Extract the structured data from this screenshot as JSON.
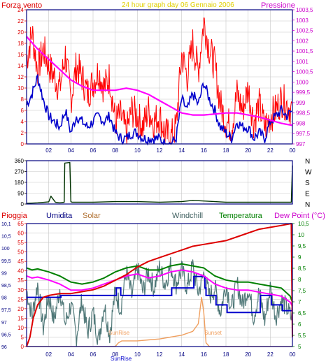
{
  "top": {
    "left_label": "Forza vento",
    "title": "24 hour graph day    06 Gennaio 2006",
    "right_label": "Pressione"
  },
  "bottom": {
    "labels": {
      "pioggia": "Pioggia",
      "umidita": "Umidita",
      "solar": "Solar",
      "windchill": "Windchill",
      "temperatura": "Temperatura",
      "dewpoint": "Dew Point (°C)",
      "sunset": "Sunset",
      "sunrise": "SunRise"
    }
  },
  "colors": {
    "frame": "#000080",
    "wind": "#ff0000",
    "gust_avg": "#0000cc",
    "pressure": "#ff00ff",
    "direction": "#003300",
    "rain": "#dd0000",
    "humidity": "#0000cc",
    "solar": "#f0a060",
    "windchill": "#507878",
    "temperature": "#008000",
    "dewpoint": "#ff00ff",
    "left_axis": "#dd0000",
    "right_axis": "#cc00cc",
    "temp_axis": "#008000"
  },
  "chart_data": [
    {
      "type": "line",
      "name": "wind_pressure",
      "x_ticks": [
        "02",
        "04",
        "06",
        "08",
        "10",
        "12",
        "14",
        "16",
        "18",
        "20",
        "22",
        "00"
      ],
      "x_range": [
        0,
        24
      ],
      "y_left_ticks": [
        "24",
        "22",
        "20",
        "18",
        "16",
        "14",
        "12",
        "10",
        "8",
        "6",
        "4",
        "2",
        "0"
      ],
      "y_left_range": [
        0,
        24
      ],
      "y_right_ticks": [
        "1003,5",
        "1003",
        "1002,5",
        "1002",
        "1001,5",
        "1001",
        "1000,5",
        "1000",
        "999,5",
        "999",
        "998,5",
        "998",
        "997,5",
        "997"
      ],
      "y_right_range": [
        997,
        1003.5
      ],
      "series": [
        {
          "key": "wind_gust",
          "x": [
            0,
            0.5,
            1,
            1.5,
            2,
            2.5,
            3,
            3.5,
            4,
            4.5,
            5,
            5.5,
            6,
            6.5,
            7,
            7.5,
            8,
            8.5,
            9,
            9.5,
            10,
            10.5,
            11,
            11.5,
            12,
            12.5,
            13,
            13.5,
            14,
            14.5,
            15,
            15.5,
            16,
            16.5,
            17,
            17.5,
            18,
            18.5,
            19,
            19.5,
            20,
            20.5,
            21,
            21.5,
            22,
            22.5,
            23,
            23.5,
            24
          ],
          "values": [
            15,
            20,
            13,
            17,
            14,
            12,
            10,
            16,
            8,
            14,
            12,
            9,
            11,
            13,
            10,
            12,
            4,
            5,
            2,
            6,
            5,
            3,
            6,
            4,
            5,
            2,
            1,
            3,
            16,
            12,
            18,
            13,
            22,
            17,
            14,
            7,
            4,
            3,
            9,
            6,
            10,
            4,
            7,
            3,
            5,
            6,
            8,
            7,
            6
          ]
        },
        {
          "key": "wind_avg",
          "x": [
            0,
            0.5,
            1,
            1.5,
            2,
            2.5,
            3,
            3.5,
            4,
            4.5,
            5,
            5.5,
            6,
            6.5,
            7,
            7.5,
            8,
            8.5,
            9,
            9.5,
            10,
            10.5,
            11,
            11.5,
            12,
            12.5,
            13,
            13.5,
            14,
            14.5,
            15,
            15.5,
            16,
            16.5,
            17,
            17.5,
            18,
            18.5,
            19,
            19.5,
            20,
            20.5,
            21,
            21.5,
            22,
            22.5,
            23,
            23.5,
            24
          ],
          "values": [
            7,
            9,
            12,
            8,
            5,
            4,
            3,
            6,
            2,
            5,
            4,
            3,
            4,
            5,
            4,
            5,
            2,
            1,
            1,
            2,
            2,
            1,
            1,
            1,
            1,
            0,
            0,
            1,
            8,
            6,
            9,
            7,
            11,
            8,
            6,
            3,
            2,
            1,
            4,
            3,
            3,
            1,
            2,
            1,
            4,
            5,
            6,
            5,
            6
          ]
        },
        {
          "key": "pressure",
          "x": [
            0,
            1,
            2,
            3,
            4,
            5,
            6,
            7,
            8,
            9,
            10,
            11,
            12,
            13,
            14,
            15,
            16,
            17,
            18,
            19,
            20,
            21,
            22,
            23,
            24
          ],
          "values": [
            1002.2,
            1001.6,
            1001.1,
            1000.6,
            1000.1,
            999.8,
            999.6,
            999.6,
            999.6,
            999.7,
            999.6,
            999.4,
            999.1,
            998.8,
            998.5,
            998.4,
            998.4,
            998.45,
            998.5,
            998.5,
            998.4,
            998.3,
            998.15,
            998.0,
            997.9
          ]
        }
      ]
    },
    {
      "type": "line",
      "name": "wind_direction",
      "y_ticks": [
        "360",
        "270",
        "180",
        "90",
        "0"
      ],
      "y_range": [
        0,
        360
      ],
      "direction_labels": [
        "N",
        "W",
        "S",
        "E",
        "N"
      ],
      "series": [
        {
          "key": "direction",
          "x": [
            0,
            1,
            2,
            2.2,
            2.6,
            3,
            3.4,
            3.45,
            3.9,
            4,
            4.1,
            6,
            8,
            10,
            12,
            14,
            15,
            16,
            18,
            20,
            22,
            23.9,
            24
          ],
          "values": [
            5,
            10,
            18,
            65,
            15,
            10,
            15,
            340,
            345,
            20,
            15,
            15,
            20,
            20,
            15,
            20,
            30,
            25,
            15,
            15,
            15,
            15,
            320
          ]
        }
      ]
    },
    {
      "type": "line",
      "name": "rain_humidity_temp",
      "y_left_ticks": [
        "65",
        "60",
        "55",
        "50",
        "45",
        "40",
        "35",
        "30",
        "25",
        "20",
        "15",
        "10",
        "5",
        "0"
      ],
      "y_left_range": [
        0,
        65
      ],
      "y_rain_ticks": [
        "10,1",
        "10,5",
        "100",
        "99,5",
        "99",
        "98,5",
        "98",
        "97,5",
        "97",
        "96,5",
        "96"
      ],
      "y_rain_range": [
        96,
        101
      ],
      "y_right_ticks": [
        "10,5",
        "10",
        "9,5",
        "9",
        "8,5",
        "8",
        "7,5",
        "7",
        "6,5",
        "6",
        "5,5",
        "5"
      ],
      "y_right_range": [
        4.7,
        10.8
      ],
      "series": [
        {
          "key": "rain",
          "x": [
            0,
            0.3,
            0.6,
            1,
            1.5,
            2,
            3,
            4,
            5,
            6,
            7,
            8,
            9,
            10,
            11,
            12,
            13,
            14,
            15,
            16,
            17,
            18,
            19,
            20,
            21,
            22,
            23,
            23.9,
            24
          ],
          "values": [
            0,
            5,
            15,
            22,
            26,
            27,
            28,
            28,
            29,
            30,
            32,
            35,
            38,
            42,
            45,
            47,
            49,
            51,
            53,
            54,
            55,
            56,
            58,
            60,
            62,
            63,
            64,
            65,
            5
          ]
        },
        {
          "key": "humidity",
          "x": [
            0,
            3,
            3.1,
            6,
            8,
            8.1,
            8.4,
            8.5,
            10,
            13,
            13.1,
            15,
            15.1,
            16,
            16.1,
            16.2,
            17,
            17.1,
            18,
            18.1,
            20,
            21,
            21.1,
            22,
            22.1,
            23,
            23.1,
            24
          ],
          "values": [
            26,
            26,
            27,
            27,
            27,
            31,
            31,
            27,
            27,
            27,
            31,
            31,
            37,
            37,
            31,
            27,
            27,
            22,
            22,
            18,
            18,
            18,
            27,
            27,
            22,
            22,
            19,
            19
          ]
        },
        {
          "key": "solar",
          "x": [
            0,
            6,
            8,
            8.3,
            8.6,
            9,
            10,
            11,
            12,
            13,
            14,
            15,
            15.5,
            15.8,
            16,
            16.2,
            16.5,
            17,
            24
          ],
          "values": [
            0,
            0,
            0,
            2,
            3,
            3,
            3,
            3.5,
            4,
            5,
            6,
            8,
            12,
            26,
            18,
            2,
            0,
            0,
            0
          ]
        },
        {
          "key": "windchill",
          "x": [
            0,
            0.5,
            1,
            1.5,
            2,
            2.5,
            3,
            3.5,
            4,
            4.5,
            5,
            5.5,
            6,
            6.5,
            7,
            7.5,
            8,
            8.5,
            9,
            9.5,
            10,
            10.5,
            11,
            11.5,
            12,
            12.5,
            13,
            13.5,
            14,
            14.5,
            15,
            15.5,
            16,
            16.5,
            17,
            17.5,
            18,
            18.5,
            19,
            19.5,
            20,
            20.5,
            21,
            21.5,
            22,
            22.5,
            23,
            23.5,
            24
          ],
          "values": [
            7.5,
            6.2,
            7.8,
            5.6,
            7.2,
            6.0,
            7.6,
            5.8,
            6.8,
            5.2,
            7.0,
            5.4,
            6.4,
            5.0,
            6.8,
            5.3,
            7.4,
            6.6,
            8.4,
            7.2,
            8.6,
            7.4,
            8.4,
            7.6,
            8.6,
            7.8,
            8.7,
            7.8,
            8.5,
            7.6,
            8.7,
            7.4,
            8.3,
            7.2,
            7.6,
            6.4,
            7.8,
            6.6,
            7.8,
            6.8,
            7.6,
            6.2,
            7.4,
            6.0,
            7.6,
            6.2,
            7.0,
            6.6,
            6.0
          ]
        },
        {
          "key": "temperature",
          "x": [
            0,
            0.5,
            1,
            2,
            3,
            4,
            5,
            6,
            7,
            8,
            9,
            10,
            11,
            12,
            13,
            14,
            15,
            16,
            17,
            18,
            19,
            20,
            21,
            22,
            23,
            23.8,
            24
          ],
          "values": [
            8.6,
            8.5,
            8.55,
            8.4,
            8.2,
            7.9,
            7.8,
            7.9,
            8.1,
            8.4,
            8.6,
            8.7,
            8.5,
            8.5,
            8.7,
            8.8,
            8.7,
            8.6,
            8.2,
            8.0,
            7.9,
            7.9,
            7.8,
            7.7,
            7.6,
            7.2,
            6.9
          ]
        },
        {
          "key": "dewpoint",
          "x": [
            0,
            0.5,
            1,
            2,
            3,
            4,
            5,
            6,
            7,
            8,
            9,
            10,
            11,
            12,
            13,
            14,
            15,
            16,
            17,
            18,
            19,
            20,
            21,
            22,
            23,
            23.8,
            24
          ],
          "values": [
            8.2,
            8.1,
            8.15,
            8.0,
            7.8,
            7.5,
            7.5,
            7.6,
            7.8,
            8.0,
            8.2,
            8.3,
            8.1,
            8.2,
            8.4,
            8.5,
            8.4,
            8.2,
            7.8,
            7.6,
            7.5,
            7.5,
            7.4,
            7.3,
            7.2,
            6.9,
            6.7
          ]
        }
      ]
    }
  ]
}
